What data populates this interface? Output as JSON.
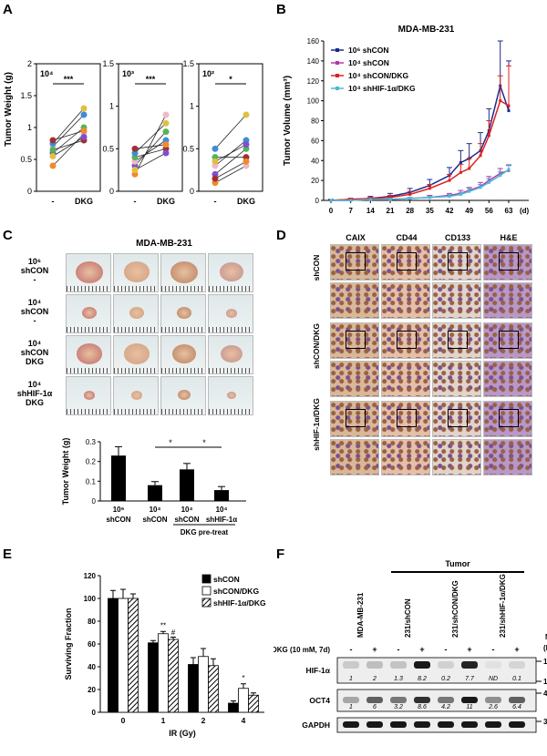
{
  "panels": {
    "a": "A",
    "b": "B",
    "c": "C",
    "d": "D",
    "e": "E",
    "f": "F"
  },
  "panelA": {
    "ylabel": "Tumor Weight (g)",
    "xcats": [
      "-",
      "DKG"
    ],
    "subplots": [
      {
        "dose": "10⁴",
        "sig": "***",
        "ylim": [
          0,
          2
        ],
        "yticks": [
          "0",
          "0.5",
          "1",
          "1.5",
          "2"
        ],
        "pairs": [
          [
            0.4,
            0.9
          ],
          [
            0.6,
            1.0
          ],
          [
            0.7,
            1.2
          ],
          [
            0.65,
            0.8
          ],
          [
            0.75,
            1.3
          ],
          [
            0.8,
            0.95
          ],
          [
            0.55,
            0.85
          ]
        ]
      },
      {
        "dose": "10³",
        "sig": "***",
        "ylim": [
          0,
          1.5
        ],
        "yticks": [
          "0",
          "0.5",
          "1",
          "1.5"
        ],
        "pairs": [
          [
            0.2,
            0.9
          ],
          [
            0.3,
            0.7
          ],
          [
            0.35,
            0.6
          ],
          [
            0.4,
            0.5
          ],
          [
            0.45,
            0.8
          ],
          [
            0.5,
            0.55
          ],
          [
            0.25,
            0.45
          ]
        ]
      },
      {
        "dose": "10²",
        "sig": "*",
        "ylim": [
          0,
          1.5
        ],
        "yticks": [
          "0",
          "0.5",
          "1",
          "1.5"
        ],
        "pairs": [
          [
            0.1,
            0.3
          ],
          [
            0.2,
            0.5
          ],
          [
            0.3,
            0.6
          ],
          [
            0.4,
            0.4
          ],
          [
            0.5,
            0.9
          ],
          [
            0.15,
            0.35
          ],
          [
            0.35,
            0.55
          ]
        ]
      }
    ]
  },
  "chart_data": [
    {
      "type": "line",
      "title": "MDA-MB-231",
      "xlabel": "(d)",
      "ylabel": "Tumor Volume (mm³)",
      "ylim": [
        0,
        160
      ],
      "yticks": [
        "0",
        "20",
        "40",
        "60",
        "80",
        "100",
        "120",
        "140",
        "160"
      ],
      "xticks": [
        "0",
        "7",
        "14",
        "21",
        "28",
        "35",
        "42",
        "49",
        "56",
        "63"
      ],
      "x": [
        0,
        7,
        14,
        21,
        28,
        35,
        42,
        46,
        49,
        53,
        56,
        60,
        63
      ],
      "series": [
        {
          "name": "10⁶ shCON",
          "color": "#1c2b8a",
          "values": [
            0,
            1,
            2,
            4,
            8,
            15,
            25,
            38,
            42,
            50,
            70,
            115,
            90
          ],
          "err": [
            1,
            1,
            2,
            3,
            4,
            6,
            8,
            12,
            15,
            18,
            22,
            45,
            50
          ]
        },
        {
          "name": "10⁴ shCON",
          "color": "#b03aa8",
          "values": [
            0,
            0,
            1,
            1,
            2,
            3,
            5,
            7,
            10,
            14,
            20,
            27,
            30
          ],
          "err": [
            0,
            0,
            1,
            1,
            1,
            2,
            2,
            3,
            3,
            4,
            4,
            5,
            5
          ]
        },
        {
          "name": "10⁴ shCON/DKG",
          "color": "#e02020",
          "values": [
            0,
            1,
            2,
            3,
            6,
            12,
            20,
            28,
            32,
            45,
            65,
            100,
            95
          ],
          "err": [
            0,
            1,
            1,
            2,
            3,
            4,
            6,
            8,
            10,
            12,
            15,
            25,
            40
          ]
        },
        {
          "name": "10⁴ shHIF-1α/DKG",
          "color": "#4fb8d8",
          "values": [
            0,
            0,
            1,
            1,
            2,
            3,
            4,
            6,
            9,
            13,
            18,
            25,
            31
          ],
          "err": [
            0,
            0,
            0,
            1,
            1,
            1,
            2,
            2,
            3,
            3,
            4,
            4,
            5
          ]
        }
      ]
    },
    {
      "type": "bar",
      "ylabel": "Tumor Weight (g)",
      "ylim": [
        0,
        0.3
      ],
      "yticks": [
        "0",
        "0.1",
        "0.2",
        "0.3"
      ],
      "categories": [
        "10⁶ shCON",
        "10⁴ shCON",
        "10⁴ shCON",
        "10⁴ shHIF-1α"
      ],
      "values": [
        0.23,
        0.08,
        0.16,
        0.055
      ],
      "err": [
        0.045,
        0.018,
        0.03,
        0.018
      ],
      "sig": [
        "*",
        "*"
      ]
    },
    {
      "type": "bar",
      "xlabel": "IR (Gy)",
      "ylabel": "Surviving Fraction",
      "ylim": [
        0,
        120
      ],
      "yticks": [
        "0",
        "20",
        "40",
        "60",
        "80",
        "100",
        "120"
      ],
      "categories": [
        "0",
        "1",
        "2",
        "4"
      ],
      "series": [
        {
          "name": "shCON",
          "values": [
            100,
            61,
            42,
            8
          ],
          "err": [
            7,
            2,
            6,
            2
          ]
        },
        {
          "name": "shCON/DKG",
          "values": [
            100,
            69,
            49,
            21
          ],
          "err": [
            8,
            2,
            7,
            4
          ]
        },
        {
          "name": "shHIF-1α/DKG",
          "values": [
            100,
            64,
            41,
            15
          ],
          "err": [
            4,
            2,
            6,
            2
          ]
        }
      ],
      "annotations": [
        {
          "cat": "1",
          "text": "**"
        },
        {
          "cat": "1",
          "text": "#"
        },
        {
          "cat": "4",
          "text": "*"
        }
      ]
    }
  ],
  "panelC": {
    "title": "MDA-MB-231",
    "rows": [
      {
        "dose": "10⁶",
        "line1": "shCON",
        "line2": "-"
      },
      {
        "dose": "10⁴",
        "line1": "shCON",
        "line2": "-"
      },
      {
        "dose": "10⁴",
        "line1": "shCON",
        "line2": "DKG"
      },
      {
        "dose": "10⁴",
        "line1": "shHIF-1α",
        "line2": "DKG"
      }
    ],
    "xlabels": [
      [
        "10⁶",
        "shCON"
      ],
      [
        "10⁴",
        "shCON"
      ],
      [
        "10⁴",
        "shCON"
      ],
      [
        "10⁴",
        "shHIF-1α"
      ]
    ],
    "pretreat": "DKG pre-treat"
  },
  "panelD": {
    "cols": [
      "CAIX",
      "CD44",
      "CD133",
      "H&E"
    ],
    "rows": [
      "shCON",
      "shCON/DKG",
      "shHIF-1α/DKG"
    ]
  },
  "panelF": {
    "tumor": "Tumor",
    "lanes": [
      "MDA-MB-231",
      "231/shCON",
      "231/shCON/DKG",
      "231/shHIF-1α/DKG"
    ],
    "treatment": "DKG (10 mM, 7d)",
    "signs": [
      "-",
      "+",
      "-",
      "+",
      "-",
      "+",
      "-",
      "+"
    ],
    "mw_label": "M.W.",
    "mw_unit": "(kDa)",
    "rows": [
      {
        "name": "HIF-1α",
        "values": [
          "1",
          "2",
          "1.3",
          "8.2",
          "0.2",
          "7.7",
          "ND",
          "0.1"
        ],
        "mw": [
          "135",
          "100"
        ]
      },
      {
        "name": "OCT4",
        "values": [
          "1",
          "6",
          "3.2",
          "8.6",
          "4.2",
          "11",
          "2.6",
          "6.4"
        ],
        "mw": [
          "48"
        ]
      },
      {
        "name": "GAPDH",
        "values": [],
        "mw": [
          "35"
        ]
      }
    ]
  }
}
